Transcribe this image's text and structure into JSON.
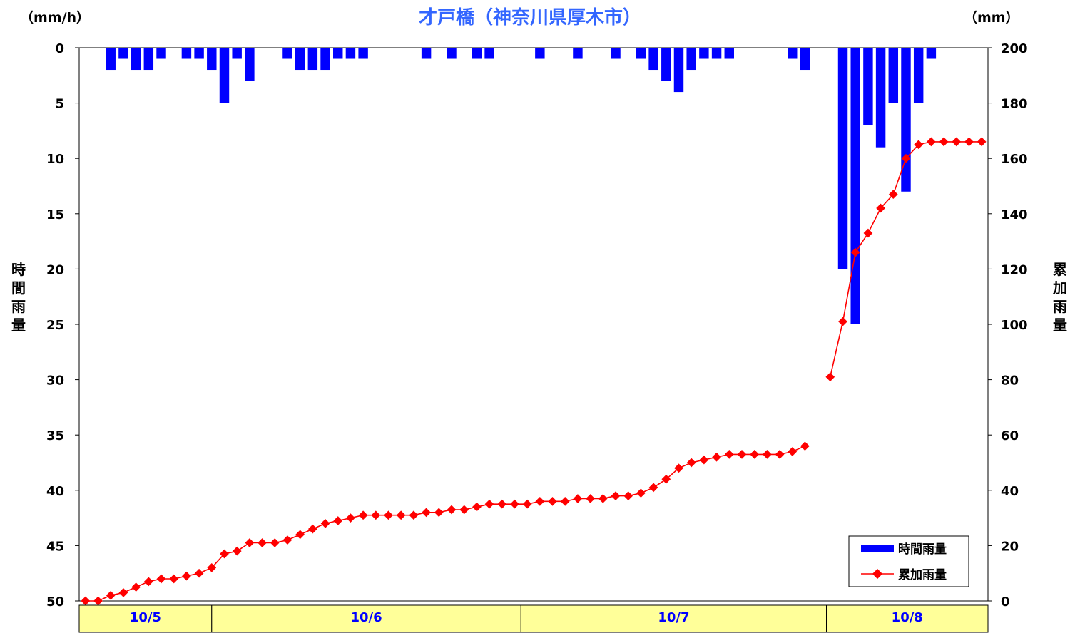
{
  "chart_data": {
    "type": "bar+line",
    "title": "才戸橋（神奈川県厚木市）",
    "left_unit": "（mm/h）",
    "right_unit": "（mm）",
    "left_axis_title": "時間雨量",
    "right_axis_title": "累加雨量",
    "left_axis": {
      "ylim": [
        0,
        50
      ],
      "inverted": true,
      "ticks": [
        0,
        5,
        10,
        15,
        20,
        25,
        30,
        35,
        40,
        45,
        50
      ]
    },
    "right_axis": {
      "ylim": [
        0,
        200
      ],
      "ticks": [
        0,
        20,
        40,
        60,
        80,
        100,
        120,
        140,
        160,
        180,
        200
      ]
    },
    "x_range": [
      0,
      72
    ],
    "day_labels": [
      {
        "label": "10/5",
        "start": 0,
        "end": 10.5
      },
      {
        "label": "10/6",
        "start": 10.5,
        "end": 35
      },
      {
        "label": "10/7",
        "start": 35,
        "end": 59.2
      },
      {
        "label": "10/8",
        "start": 59.2,
        "end": 72
      }
    ],
    "legend": {
      "position": "bottom-right",
      "items": [
        "時間雨量",
        "累加雨量"
      ]
    },
    "colors": {
      "bars": "#0000ff",
      "line": "#ff0000",
      "date_band": "#ffff99",
      "title": "#3366ff"
    },
    "series": [
      {
        "name": "時間雨量",
        "axis": "left",
        "kind": "bar",
        "points": [
          [
            2.5,
            2
          ],
          [
            3.5,
            1
          ],
          [
            4.5,
            2
          ],
          [
            5.5,
            2
          ],
          [
            6.5,
            1
          ],
          [
            8.5,
            1
          ],
          [
            9.5,
            1
          ],
          [
            10.5,
            2
          ],
          [
            11.5,
            5
          ],
          [
            12.5,
            1
          ],
          [
            13.5,
            3
          ],
          [
            16.5,
            1
          ],
          [
            17.5,
            2
          ],
          [
            18.5,
            2
          ],
          [
            19.5,
            2
          ],
          [
            20.5,
            1
          ],
          [
            21.5,
            1
          ],
          [
            22.5,
            1
          ],
          [
            27.5,
            1
          ],
          [
            29.5,
            1
          ],
          [
            31.5,
            1
          ],
          [
            32.5,
            1
          ],
          [
            36.5,
            1
          ],
          [
            39.5,
            1
          ],
          [
            42.5,
            1
          ],
          [
            44.5,
            1
          ],
          [
            45.5,
            2
          ],
          [
            46.5,
            3
          ],
          [
            47.5,
            4
          ],
          [
            48.5,
            2
          ],
          [
            49.5,
            1
          ],
          [
            50.5,
            1
          ],
          [
            51.5,
            1
          ],
          [
            56.5,
            1
          ],
          [
            57.5,
            2
          ],
          [
            60.5,
            20
          ],
          [
            61.5,
            25
          ],
          [
            62.5,
            7
          ],
          [
            63.5,
            9
          ],
          [
            64.5,
            5
          ],
          [
            65.5,
            13
          ],
          [
            66.5,
            5
          ],
          [
            67.5,
            1
          ]
        ]
      },
      {
        "name": "累加雨量",
        "axis": "right",
        "kind": "line",
        "segments": [
          [
            [
              0.5,
              0
            ],
            [
              1.5,
              0
            ],
            [
              2.5,
              2
            ],
            [
              3.5,
              3
            ],
            [
              4.5,
              5
            ],
            [
              5.5,
              7
            ],
            [
              6.5,
              8
            ],
            [
              7.5,
              8
            ],
            [
              8.5,
              9
            ],
            [
              9.5,
              10
            ],
            [
              10.5,
              12
            ],
            [
              11.5,
              17
            ],
            [
              12.5,
              18
            ],
            [
              13.5,
              21
            ],
            [
              14.5,
              21
            ],
            [
              15.5,
              21
            ],
            [
              16.5,
              22
            ],
            [
              17.5,
              24
            ],
            [
              18.5,
              26
            ],
            [
              19.5,
              28
            ],
            [
              20.5,
              29
            ],
            [
              21.5,
              30
            ],
            [
              22.5,
              31
            ],
            [
              23.5,
              31
            ],
            [
              24.5,
              31
            ],
            [
              25.5,
              31
            ],
            [
              26.5,
              31
            ],
            [
              27.5,
              32
            ],
            [
              28.5,
              32
            ],
            [
              29.5,
              33
            ],
            [
              30.5,
              33
            ],
            [
              31.5,
              34
            ],
            [
              32.5,
              35
            ],
            [
              33.5,
              35
            ],
            [
              34.5,
              35
            ],
            [
              35.5,
              35
            ],
            [
              36.5,
              36
            ],
            [
              37.5,
              36
            ],
            [
              38.5,
              36
            ],
            [
              39.5,
              37
            ],
            [
              40.5,
              37
            ],
            [
              41.5,
              37
            ],
            [
              42.5,
              38
            ],
            [
              43.5,
              38
            ],
            [
              44.5,
              39
            ],
            [
              45.5,
              41
            ],
            [
              46.5,
              44
            ],
            [
              47.5,
              48
            ],
            [
              48.5,
              50
            ],
            [
              49.5,
              51
            ],
            [
              50.5,
              52
            ],
            [
              51.5,
              53
            ],
            [
              52.5,
              53
            ],
            [
              53.5,
              53
            ],
            [
              54.5,
              53
            ],
            [
              55.5,
              53
            ],
            [
              56.5,
              54
            ],
            [
              57.5,
              56
            ]
          ],
          [
            [
              59.5,
              81
            ],
            [
              60.5,
              101
            ],
            [
              61.5,
              126
            ],
            [
              62.5,
              133
            ],
            [
              63.5,
              142
            ],
            [
              64.5,
              147
            ],
            [
              65.5,
              160
            ],
            [
              66.5,
              165
            ],
            [
              67.5,
              166
            ],
            [
              68.5,
              166
            ],
            [
              69.5,
              166
            ],
            [
              70.5,
              166
            ],
            [
              71.5,
              166
            ]
          ]
        ]
      }
    ]
  }
}
